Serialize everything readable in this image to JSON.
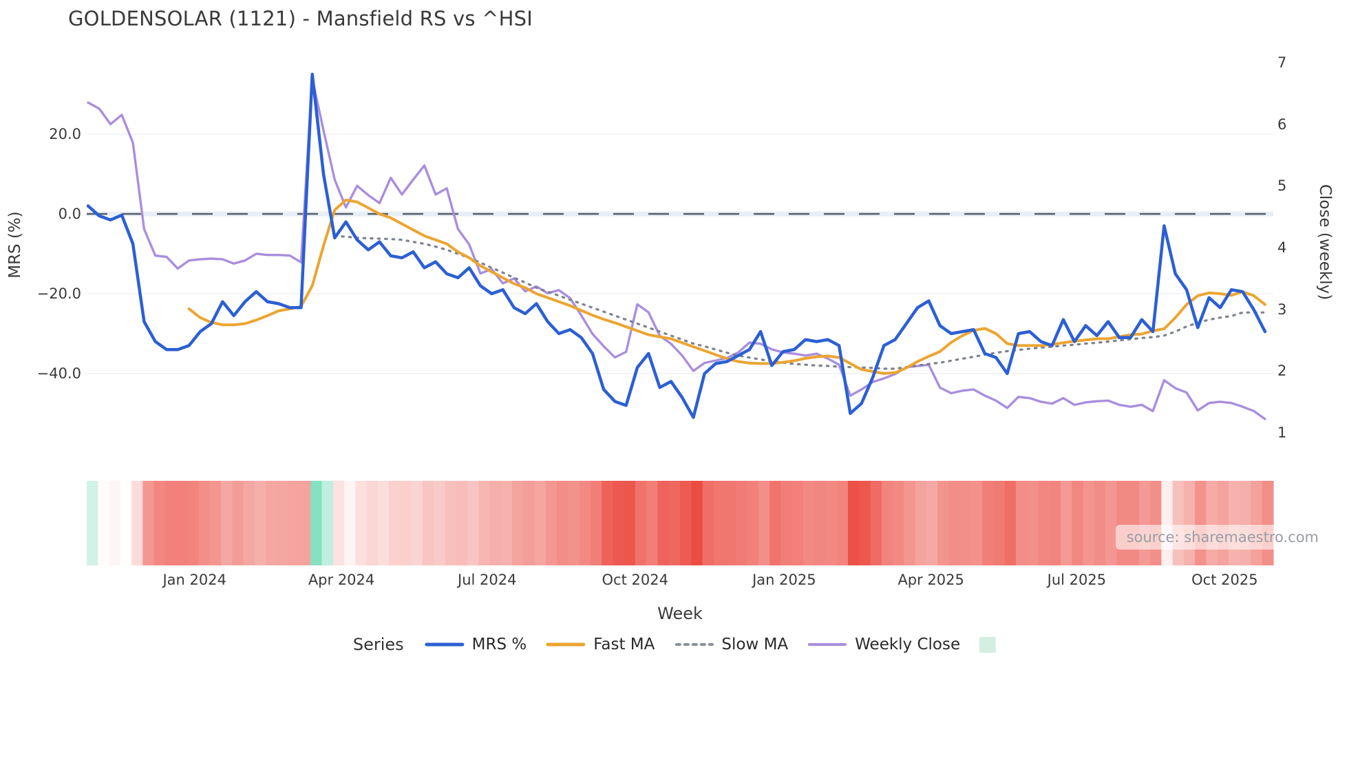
{
  "title": "GOLDENSOLAR (1121) - Mansfield RS vs ^HSI",
  "watermark": {
    "text": "source: sharemaestro.com"
  },
  "legend": {
    "title": "Series",
    "extra_swatch_color": "#d2efe2",
    "dash_color": "#8a8f9b"
  },
  "colors": {
    "grid": "#edf0f6",
    "zero_band": "#e8eef8",
    "zero_dash": "#565b66",
    "mrs": "#2b5fd4",
    "fast_ma": "#eba531",
    "slow_ma": "#7d828c",
    "weekly_close": "#a98ede",
    "heat_positive": "#2fcb93",
    "heat_negative": "#eb4a40",
    "text": "#3a3a3a"
  },
  "chart_data": {
    "type": "line",
    "title": "GOLDENSOLAR (1121) - Mansfield RS vs ^HSI",
    "xlabel": "Week",
    "ylabel_left": "MRS (%)",
    "ylabel_right": "Close (weekly)",
    "ylim_left": [
      -60,
      43
    ],
    "ylim_right": [
      0.55,
      7.35
    ],
    "grid": "horizontal-left-axis-only",
    "legend_position": "bottom-center",
    "weeks_total": 106,
    "x_start": "2023-10-23 (weekly)",
    "y_ticks_left": [
      {
        "label": "20.0",
        "value": 20
      },
      {
        "label": "0.0",
        "value": 0
      },
      {
        "label": "−20.0",
        "value": -20
      },
      {
        "label": "−40.0",
        "value": -40
      }
    ],
    "y_ticks_right": [
      {
        "label": "7",
        "value": 7
      },
      {
        "label": "6",
        "value": 6
      },
      {
        "label": "5",
        "value": 5
      },
      {
        "label": "4",
        "value": 4
      },
      {
        "label": "3",
        "value": 3
      },
      {
        "label": "2",
        "value": 2
      },
      {
        "label": "1",
        "value": 1
      }
    ],
    "x_ticks": [
      {
        "label": "Jan 2024",
        "week": 9.5
      },
      {
        "label": "Apr 2024",
        "week": 22.6
      },
      {
        "label": "Jul 2024",
        "week": 35.6
      },
      {
        "label": "Oct 2024",
        "week": 48.8
      },
      {
        "label": "Jan 2025",
        "week": 62.1
      },
      {
        "label": "Apr 2025",
        "week": 75.2
      },
      {
        "label": "Jul 2025",
        "week": 88.2
      },
      {
        "label": "Oct 2025",
        "week": 101.4
      }
    ],
    "zero_line_left": 0,
    "series": [
      {
        "name": "MRS %",
        "axis": "left",
        "color": "#2b5fd4",
        "width": 4.5,
        "style": "solid",
        "start_week": 0,
        "values": [
          2,
          -0.5,
          -1.5,
          -0.3,
          -7.5,
          -27,
          -32,
          -34,
          -34,
          -33,
          -29.5,
          -27.5,
          -22,
          -25.5,
          -22,
          -19.5,
          -22,
          -22.5,
          -23.5,
          -23.5,
          35,
          10,
          -6,
          -2,
          -6.5,
          -9,
          -7,
          -10.5,
          -11,
          -9.5,
          -13.5,
          -12,
          -15,
          -16,
          -13.5,
          -18,
          -20,
          -19,
          -23.5,
          -25,
          -22.5,
          -27,
          -30,
          -29,
          -31,
          -35,
          -44,
          -47,
          -48,
          -38.5,
          -35,
          -43.5,
          -42,
          -46,
          -51,
          -40,
          -37.5,
          -37,
          -35.5,
          -34,
          -29.5,
          -38,
          -34.5,
          -34,
          -31.5,
          -32,
          -31.5,
          -33,
          -50,
          -47.5,
          -41,
          -33,
          -31.5,
          -27.5,
          -23.5,
          -21.8,
          -28,
          -30,
          -29.5,
          -29,
          -35,
          -36,
          -40,
          -30,
          -29.5,
          -32,
          -33,
          -26.5,
          -32,
          -28,
          -30.5,
          -27,
          -31,
          -31,
          -26.5,
          -29.5,
          -3,
          -15,
          -19,
          -28.5,
          -21,
          -23.5,
          -19,
          -19.5,
          -24,
          -29.5
        ]
      },
      {
        "name": "Fast MA",
        "axis": "left",
        "color": "#eba531",
        "width": 4,
        "style": "solid",
        "start_week": 9,
        "values": [
          -23.8,
          -26,
          -27.2,
          -27.8,
          -27.8,
          -27.5,
          -26.6,
          -25.5,
          -24.3,
          -23.8,
          -23.2,
          -18,
          -8,
          1,
          3.5,
          3,
          1.5,
          0,
          -1,
          -2.5,
          -4,
          -5.5,
          -6.5,
          -7.5,
          -9.5,
          -11,
          -13,
          -14.5,
          -16,
          -17.5,
          -18.5,
          -20,
          -21,
          -22,
          -23,
          -24.2,
          -25.4,
          -26.4,
          -27.3,
          -28.3,
          -29.3,
          -30.3,
          -30.8,
          -31.3,
          -32.3,
          -33.3,
          -34.3,
          -35.3,
          -36.3,
          -37,
          -37.4,
          -37.5,
          -37.5,
          -37.2,
          -36.8,
          -36.2,
          -35.8,
          -35.6,
          -36,
          -37.5,
          -39,
          -39.5,
          -40,
          -39.8,
          -38.6,
          -37,
          -35.7,
          -34.5,
          -32.2,
          -30.5,
          -29.2,
          -28.7,
          -30,
          -32.5,
          -33,
          -33,
          -33,
          -32.7,
          -32.3,
          -31.9,
          -31.6,
          -31.3,
          -31.3,
          -30.8,
          -30.3,
          -30.1,
          -29.3,
          -28.8,
          -26,
          -22.7,
          -20.5,
          -19.8,
          -20,
          -20.4,
          -19.5,
          -20.5,
          -22.7
        ]
      },
      {
        "name": "Slow MA",
        "axis": "left",
        "color": "#7d828c",
        "width": 3.2,
        "style": "dotted",
        "start_week": 22,
        "values": [
          -5.5,
          -5.7,
          -6,
          -6.1,
          -6.2,
          -6.3,
          -6.5,
          -7,
          -7.5,
          -8.2,
          -9,
          -10,
          -11,
          -12.2,
          -13.5,
          -14.7,
          -16,
          -17.2,
          -18.5,
          -19.5,
          -20.5,
          -21.5,
          -22.5,
          -23.5,
          -24.5,
          -25.5,
          -26.5,
          -27.5,
          -28.5,
          -29.5,
          -30.5,
          -31.5,
          -32.5,
          -33.2,
          -34,
          -34.8,
          -35.5,
          -36,
          -36.5,
          -36.9,
          -37.3,
          -37.6,
          -37.8,
          -38,
          -38.1,
          -38.3,
          -38.4,
          -38.5,
          -38.6,
          -38.8,
          -38.8,
          -38.4,
          -38,
          -37.6,
          -37.3,
          -36.8,
          -36.3,
          -35.8,
          -35.3,
          -34.8,
          -34.4,
          -34.1,
          -33.8,
          -33.5,
          -33.3,
          -33,
          -32.8,
          -32.5,
          -32.3,
          -32,
          -31.7,
          -31.4,
          -31.1,
          -30.9,
          -30.5,
          -29.5,
          -28.2,
          -27.3,
          -26.5,
          -26,
          -25.6,
          -24.7,
          -24.7,
          -24.7
        ]
      },
      {
        "name": "Weekly Close",
        "axis": "right",
        "color": "#a98ede",
        "width": 3.4,
        "style": "solid",
        "start_week": 0,
        "values": [
          6.35,
          6.25,
          6.0,
          6.15,
          5.7,
          4.3,
          3.87,
          3.85,
          3.66,
          3.79,
          3.81,
          3.82,
          3.81,
          3.74,
          3.79,
          3.9,
          3.88,
          3.88,
          3.87,
          3.76,
          6.74,
          5.9,
          5.1,
          4.65,
          5.0,
          4.85,
          4.72,
          5.13,
          4.86,
          5.1,
          5.33,
          4.86,
          4.96,
          4.3,
          4.05,
          3.58,
          3.65,
          3.42,
          3.5,
          3.29,
          3.37,
          3.26,
          3.31,
          3.18,
          2.9,
          2.6,
          2.4,
          2.22,
          2.31,
          3.08,
          2.95,
          2.57,
          2.44,
          2.25,
          2.0,
          2.13,
          2.17,
          2.21,
          2.3,
          2.46,
          2.44,
          2.35,
          2.3,
          2.28,
          2.25,
          2.28,
          2.2,
          2.1,
          1.6,
          1.7,
          1.82,
          1.88,
          1.95,
          2.06,
          2.08,
          2.1,
          1.73,
          1.64,
          1.68,
          1.7,
          1.6,
          1.52,
          1.4,
          1.58,
          1.56,
          1.5,
          1.47,
          1.56,
          1.45,
          1.49,
          1.51,
          1.52,
          1.45,
          1.42,
          1.45,
          1.35,
          1.85,
          1.72,
          1.65,
          1.36,
          1.48,
          1.5,
          1.48,
          1.42,
          1.35,
          1.22
        ]
      }
    ],
    "heatmap_strip": {
      "description": "one cell per week, colored by MRS % value",
      "derived_from": "MRS %",
      "positive_color": "#2fcb93",
      "negative_color": "#eb4a40",
      "negative_full_scale": 52,
      "positive_full_scale": 35
    }
  }
}
